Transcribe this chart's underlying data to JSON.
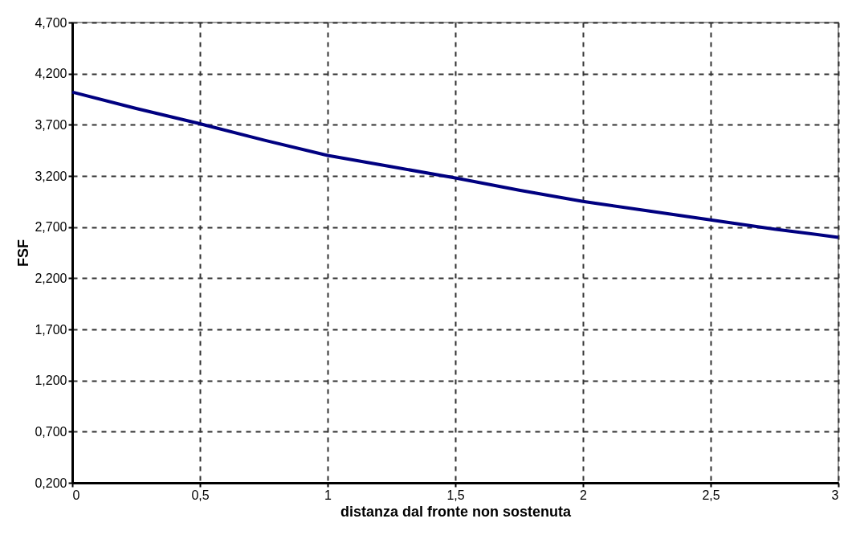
{
  "chart_data": {
    "type": "line",
    "xlabel": "distanza dal fronte non sostenuta",
    "ylabel": "FSF",
    "x": [
      0,
      0.25,
      0.5,
      0.75,
      1,
      1.25,
      1.5,
      1.75,
      2,
      2.25,
      2.5,
      2.75,
      3
    ],
    "series": [
      {
        "color": "#000080",
        "values": [
          4.02,
          3.86,
          3.71,
          3.55,
          3.4,
          3.29,
          3.18,
          3.06,
          2.95,
          2.86,
          2.77,
          2.68,
          2.6
        ]
      }
    ],
    "xlim": [
      0,
      3
    ],
    "ylim": [
      0.2,
      4.7
    ],
    "xticks": [
      0,
      {
        "value": 0.5,
        "label": "0,5"
      },
      1,
      {
        "value": 1.5,
        "label": "1,5"
      },
      2,
      {
        "value": 2.5,
        "label": "2,5"
      },
      3
    ],
    "yticks": [
      {
        "value": 0.2,
        "label": "0,200"
      },
      {
        "value": 0.7,
        "label": "0,700"
      },
      {
        "value": 1.2,
        "label": "1,200"
      },
      {
        "value": 1.7,
        "label": "1,700"
      },
      {
        "value": 2.2,
        "label": "2,200"
      },
      {
        "value": 2.7,
        "label": "2,700"
      },
      {
        "value": 3.2,
        "label": "3,200"
      },
      {
        "value": 3.7,
        "label": "3,700"
      },
      {
        "value": 4.2,
        "label": "4,200"
      },
      {
        "value": 4.7,
        "label": "4,700"
      }
    ],
    "grid": true,
    "marker": "none",
    "line_style": "solid"
  }
}
